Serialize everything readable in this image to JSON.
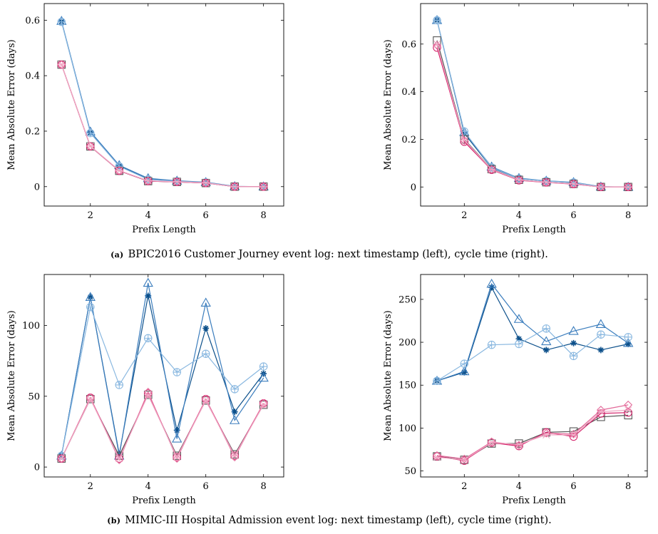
{
  "colors": {
    "dark_blue": "#0b4f8a",
    "mid_blue": "#3b7dbd",
    "light_blue": "#8ab8e0",
    "dark_gray": "#555555",
    "magenta": "#d4226a",
    "pink": "#e36a9a",
    "light_pink": "#f0a8c4"
  },
  "captions": [
    {
      "tag": "(a)",
      "text": "BPIC2016 Customer Journey event log: next timestamp (left), cycle time (right)."
    },
    {
      "tag": "(b)",
      "text": "MIMIC-III Hospital Admission event log: next timestamp (left), cycle time (right)."
    }
  ],
  "chart_data": [
    {
      "type": "line",
      "xlabel": "Prefix Length",
      "ylabel": "Mean Absolute Error (days)",
      "xlim": [
        0.4,
        8.7
      ],
      "ylim": [
        -0.07,
        0.66
      ],
      "xticks": [
        2,
        4,
        6,
        8
      ],
      "yticks": [
        0,
        0.2,
        0.4,
        0.6
      ],
      "ytick_labels": [
        "0",
        "0.2",
        "0.4",
        "0.6"
      ],
      "x": [
        1,
        2,
        3,
        4,
        5,
        6,
        7,
        8
      ],
      "series": [
        {
          "color": "dark_blue",
          "marker": "asterisk",
          "values": [
            0.595,
            0.195,
            0.075,
            0.028,
            0.02,
            0.015,
            0.0,
            0.0
          ]
        },
        {
          "color": "mid_blue",
          "marker": "triangle",
          "values": [
            0.597,
            0.198,
            0.077,
            0.03,
            0.021,
            0.016,
            0.001,
            0.0
          ]
        },
        {
          "color": "light_blue",
          "marker": "circle-plus",
          "values": [
            0.594,
            0.193,
            0.073,
            0.026,
            0.019,
            0.015,
            0.0,
            0.0
          ]
        },
        {
          "color": "dark_gray",
          "marker": "square",
          "values": [
            0.44,
            0.145,
            0.057,
            0.02,
            0.017,
            0.013,
            0.0,
            0.0
          ]
        },
        {
          "color": "magenta",
          "marker": "circle",
          "values": [
            0.44,
            0.145,
            0.057,
            0.02,
            0.017,
            0.013,
            0.0,
            0.0
          ]
        },
        {
          "color": "pink",
          "marker": "diamond",
          "values": [
            0.44,
            0.146,
            0.058,
            0.021,
            0.017,
            0.013,
            0.0,
            0.0
          ]
        },
        {
          "color": "light_pink",
          "marker": "x",
          "values": [
            0.441,
            0.146,
            0.058,
            0.021,
            0.018,
            0.014,
            0.0,
            0.0
          ]
        }
      ]
    },
    {
      "type": "line",
      "xlabel": "Prefix Length",
      "ylabel": "Mean Absolute Error (days)",
      "xlim": [
        0.4,
        8.7
      ],
      "ylim": [
        -0.08,
        0.77
      ],
      "xticks": [
        2,
        4,
        6,
        8
      ],
      "yticks": [
        0,
        0.2,
        0.4,
        0.6
      ],
      "ytick_labels": [
        "0",
        "0.2",
        "0.4",
        "0.6"
      ],
      "x": [
        1,
        2,
        3,
        4,
        5,
        6,
        7,
        8
      ],
      "series": [
        {
          "color": "dark_blue",
          "marker": "asterisk",
          "values": [
            0.7,
            0.225,
            0.08,
            0.035,
            0.025,
            0.018,
            0.0,
            0.0
          ]
        },
        {
          "color": "mid_blue",
          "marker": "triangle",
          "values": [
            0.7,
            0.23,
            0.085,
            0.037,
            0.026,
            0.02,
            0.001,
            0.0
          ]
        },
        {
          "color": "light_blue",
          "marker": "circle-plus",
          "values": [
            0.7,
            0.233,
            0.082,
            0.035,
            0.025,
            0.019,
            0.0,
            0.0
          ]
        },
        {
          "color": "dark_gray",
          "marker": "square",
          "values": [
            0.615,
            0.2,
            0.075,
            0.03,
            0.02,
            0.013,
            0.0,
            0.0
          ]
        },
        {
          "color": "magenta",
          "marker": "circle",
          "values": [
            0.585,
            0.19,
            0.072,
            0.028,
            0.019,
            0.012,
            0.0,
            0.0
          ]
        },
        {
          "color": "pink",
          "marker": "diamond",
          "values": [
            0.595,
            0.195,
            0.074,
            0.029,
            0.02,
            0.013,
            0.0,
            0.0
          ]
        },
        {
          "color": "light_pink",
          "marker": "x",
          "values": [
            0.6,
            0.197,
            0.074,
            0.03,
            0.02,
            0.013,
            0.0,
            0.0
          ]
        }
      ]
    },
    {
      "type": "line",
      "xlabel": "Prefix Length",
      "ylabel": "Mean Absolute Error (days)",
      "xlim": [
        0.4,
        8.7
      ],
      "ylim": [
        -7,
        136
      ],
      "xticks": [
        2,
        4,
        6,
        8
      ],
      "yticks": [
        0,
        50,
        100
      ],
      "ytick_labels": [
        "0",
        "50",
        "100"
      ],
      "x": [
        1,
        2,
        3,
        4,
        5,
        6,
        7,
        8
      ],
      "series": [
        {
          "color": "dark_blue",
          "marker": "asterisk",
          "values": [
            8,
            120,
            9,
            121,
            26,
            98,
            39,
            66
          ]
        },
        {
          "color": "mid_blue",
          "marker": "triangle",
          "values": [
            8,
            120,
            8,
            130,
            20,
            116,
            33,
            63
          ]
        },
        {
          "color": "light_blue",
          "marker": "circle-plus",
          "values": [
            8,
            113,
            58,
            91,
            67,
            80,
            55,
            71
          ]
        },
        {
          "color": "dark_gray",
          "marker": "square",
          "values": [
            6,
            48,
            8,
            51,
            8,
            47,
            9,
            44
          ]
        },
        {
          "color": "magenta",
          "marker": "circle",
          "values": [
            6,
            49,
            6,
            52,
            7,
            48,
            8,
            45
          ]
        },
        {
          "color": "pink",
          "marker": "diamond",
          "values": [
            6,
            49,
            5,
            53,
            6,
            48,
            7,
            45
          ]
        },
        {
          "color": "light_pink",
          "marker": "x",
          "values": [
            6,
            48,
            6,
            51,
            7,
            47,
            8,
            44
          ]
        }
      ]
    },
    {
      "type": "line",
      "xlabel": "Prefix Length",
      "ylabel": "Mean Absolute Error (days)",
      "xlim": [
        0.4,
        8.7
      ],
      "ylim": [
        43,
        279
      ],
      "xticks": [
        2,
        4,
        6,
        8
      ],
      "yticks": [
        50,
        100,
        150,
        200,
        250
      ],
      "ytick_labels": [
        "50",
        "100",
        "150",
        "200",
        "250"
      ],
      "x": [
        1,
        2,
        3,
        4,
        5,
        6,
        7,
        8
      ],
      "series": [
        {
          "color": "dark_blue",
          "marker": "asterisk",
          "values": [
            155,
            165,
            264,
            204,
            191,
            199,
            191,
            198
          ]
        },
        {
          "color": "mid_blue",
          "marker": "triangle",
          "values": [
            155,
            166,
            268,
            227,
            201,
            213,
            221,
            199
          ]
        },
        {
          "color": "light_blue",
          "marker": "circle-plus",
          "values": [
            155,
            175,
            197,
            198,
            216,
            184,
            209,
            206
          ]
        },
        {
          "color": "dark_gray",
          "marker": "square",
          "values": [
            67,
            63,
            82,
            82,
            95,
            96,
            113,
            115
          ]
        },
        {
          "color": "magenta",
          "marker": "circle",
          "values": [
            67,
            62,
            83,
            79,
            95,
            90,
            117,
            118
          ]
        },
        {
          "color": "pink",
          "marker": "diamond",
          "values": [
            68,
            64,
            84,
            80,
            94,
            93,
            121,
            127
          ]
        },
        {
          "color": "light_pink",
          "marker": "x",
          "values": [
            66,
            63,
            83,
            81,
            92,
            92,
            119,
            121
          ]
        }
      ]
    }
  ]
}
